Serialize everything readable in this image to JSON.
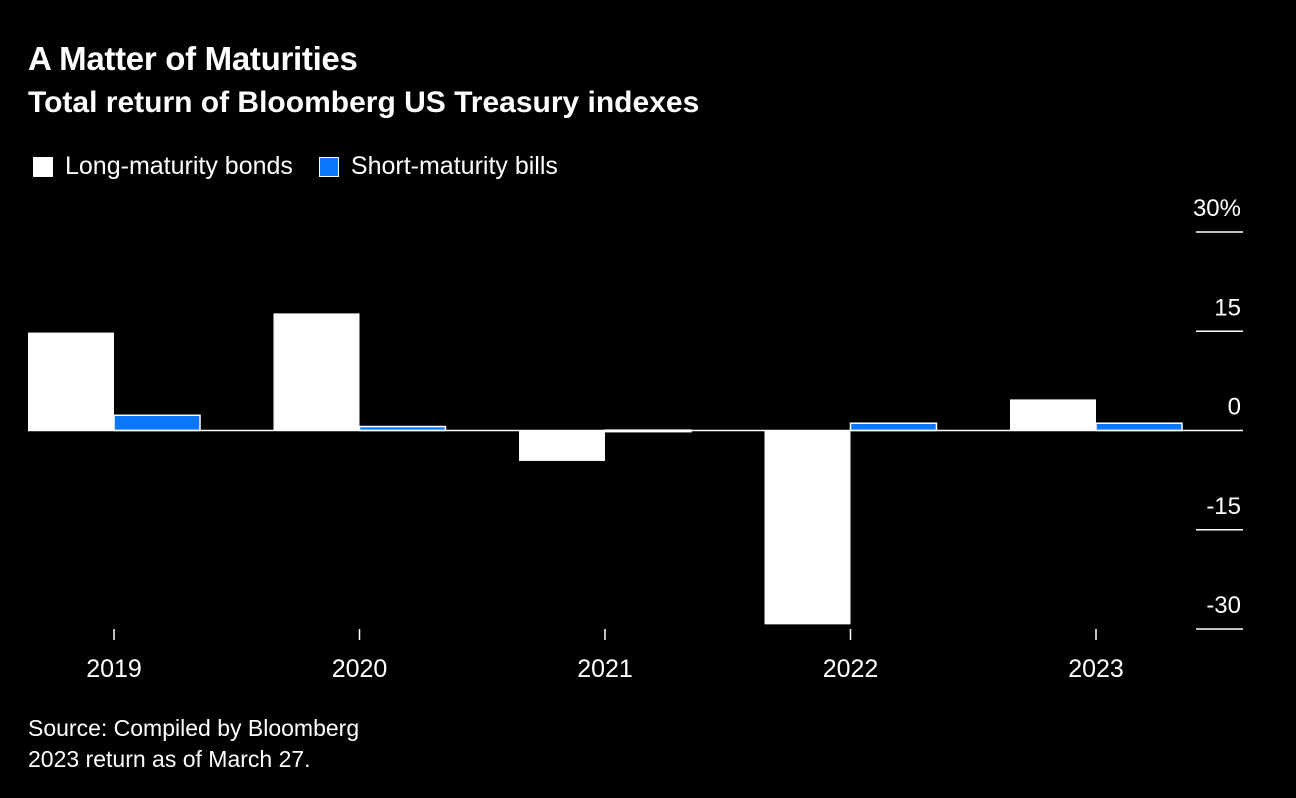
{
  "header": {
    "title": "A Matter of Maturities",
    "subtitle": "Total return of Bloomberg US Treasury indexes"
  },
  "legend": {
    "items": [
      {
        "label": "Long-maturity bonds",
        "color": "#ffffff"
      },
      {
        "label": "Short-maturity bills",
        "color": "#0d76ff"
      }
    ]
  },
  "footer": {
    "source": "Source: Compiled by Bloomberg",
    "note": "2023 return as of March 27."
  },
  "chart_data": {
    "type": "bar",
    "categories": [
      "2019",
      "2020",
      "2021",
      "2022",
      "2023"
    ],
    "series": [
      {
        "name": "Long-maturity bonds",
        "color": "#ffffff",
        "values": [
          14.8,
          17.7,
          -4.6,
          -29.3,
          4.7
        ]
      },
      {
        "name": "Short-maturity bills",
        "color": "#0d76ff",
        "values": [
          2.3,
          0.6,
          0.05,
          1.1,
          1.1
        ]
      }
    ],
    "y_ticks": [
      {
        "value": 30,
        "label": "30%"
      },
      {
        "value": 15,
        "label": "15"
      },
      {
        "value": 0,
        "label": "0"
      },
      {
        "value": -15,
        "label": "-15"
      },
      {
        "value": -30,
        "label": "-30"
      }
    ],
    "ylim": [
      -30,
      30
    ],
    "xlabel": "",
    "ylabel": "",
    "axis_position": "right"
  }
}
